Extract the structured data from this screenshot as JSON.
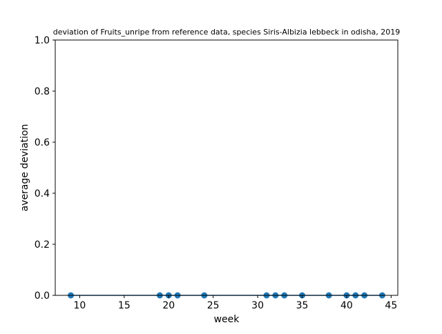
{
  "chart_data": {
    "type": "scatter",
    "title": "deviation of Fruits_unripe from reference data, species Siris-Albizia lebbeck in odisha, 2019",
    "xlabel": "week",
    "ylabel": "average deviation",
    "xlim": [
      7.25,
      45.75
    ],
    "ylim": [
      0.0,
      1.0
    ],
    "xticks": [
      10,
      15,
      20,
      25,
      30,
      35,
      40,
      45
    ],
    "yticks": [
      0.0,
      0.2,
      0.4,
      0.6,
      0.8,
      1.0
    ],
    "xtick_labels": [
      "10",
      "15",
      "20",
      "25",
      "30",
      "35",
      "40",
      "45"
    ],
    "ytick_labels": [
      "0.0",
      "0.2",
      "0.4",
      "0.6",
      "0.8",
      "1.0"
    ],
    "grid": false,
    "series": [
      {
        "color": "#1f77b4",
        "x": [
          9,
          19,
          20,
          21,
          24,
          31,
          32,
          33,
          35,
          38,
          40,
          41,
          42,
          44
        ],
        "y": [
          0,
          0,
          0,
          0,
          0,
          0,
          0,
          0,
          0,
          0,
          0,
          0,
          0,
          0
        ]
      }
    ]
  }
}
